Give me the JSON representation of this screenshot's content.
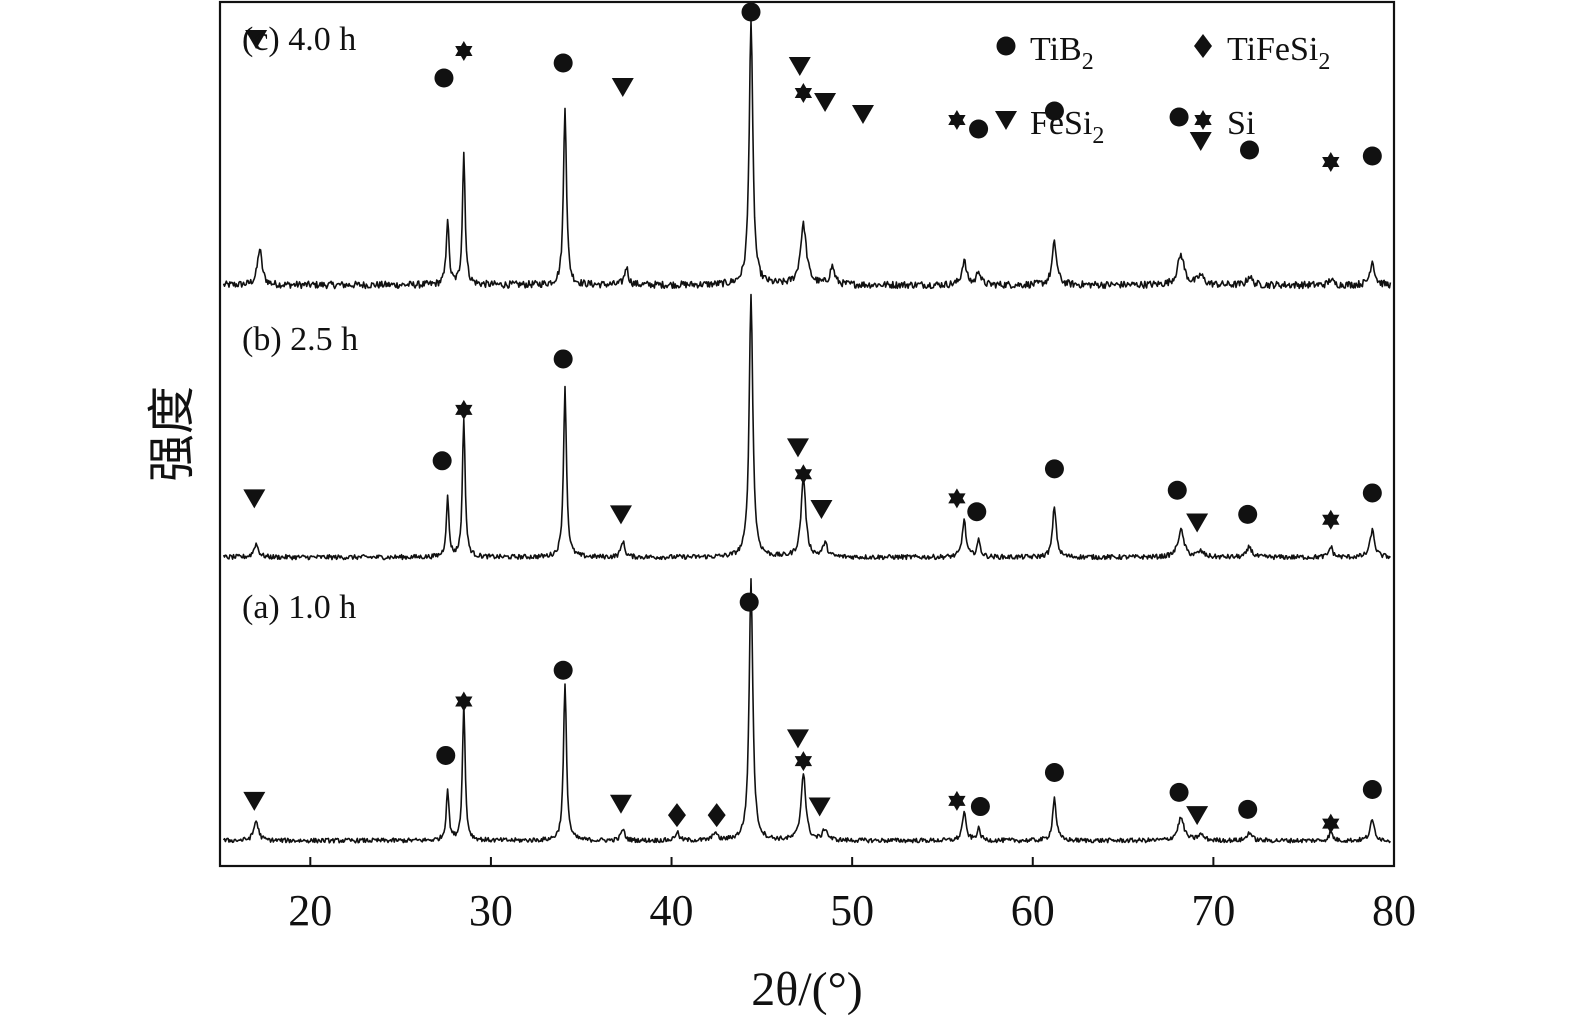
{
  "chart_data": {
    "type": "line",
    "xlabel": "2θ/(°)",
    "ylabel": "强度",
    "xlim": [
      15,
      80
    ],
    "x_ticks": [
      20,
      30,
      40,
      50,
      60,
      70,
      80
    ],
    "grid": false,
    "legend_position": "top-right",
    "legend": [
      {
        "phase": "TiB",
        "sub": "2",
        "marker": "circle"
      },
      {
        "phase": "TiFeSi",
        "sub": "2",
        "marker": "diamond"
      },
      {
        "phase": "FeSi",
        "sub": "2",
        "marker": "triangle-down"
      },
      {
        "phase": "Si",
        "sub": "",
        "marker": "star"
      }
    ],
    "series": [
      {
        "name": "(c) 4.0 h",
        "baseline": 0.05,
        "noise": 0.012,
        "peaks": [
          [
            17.2,
            0.12,
            0.15
          ],
          [
            27.6,
            0.22,
            0.09
          ],
          [
            28.5,
            0.44,
            0.09
          ],
          [
            34.1,
            0.6,
            0.1
          ],
          [
            37.5,
            0.06,
            0.12
          ],
          [
            44.4,
            0.88,
            0.12
          ],
          [
            47.3,
            0.2,
            0.2
          ],
          [
            48.9,
            0.06,
            0.15
          ],
          [
            56.2,
            0.08,
            0.15
          ],
          [
            57.0,
            0.05,
            0.12
          ],
          [
            61.2,
            0.14,
            0.15
          ],
          [
            68.2,
            0.1,
            0.22
          ],
          [
            69.3,
            0.03,
            0.2
          ],
          [
            72.0,
            0.03,
            0.15
          ],
          [
            76.5,
            0.02,
            0.12
          ],
          [
            78.8,
            0.08,
            0.15
          ]
        ],
        "markers": [
          [
            "triangle-down",
            17.0,
            0.87
          ],
          [
            "circle",
            27.4,
            0.74
          ],
          [
            "star",
            28.5,
            0.83
          ],
          [
            "circle",
            34.0,
            0.79
          ],
          [
            "triangle-down",
            37.3,
            0.71
          ],
          [
            "circle",
            44.4,
            0.96
          ],
          [
            "triangle-down",
            47.1,
            0.78
          ],
          [
            "star",
            47.3,
            0.69
          ],
          [
            "triangle-down",
            48.5,
            0.66
          ],
          [
            "triangle-down",
            50.6,
            0.62
          ],
          [
            "star",
            55.8,
            0.6
          ],
          [
            "circle",
            57.0,
            0.57
          ],
          [
            "circle",
            61.2,
            0.63
          ],
          [
            "circle",
            68.1,
            0.61
          ],
          [
            "triangle-down",
            69.3,
            0.53
          ],
          [
            "circle",
            72.0,
            0.5
          ],
          [
            "star",
            76.5,
            0.46
          ],
          [
            "circle",
            78.8,
            0.48
          ]
        ]
      },
      {
        "name": "(b) 2.5 h",
        "baseline": 0.04,
        "noise": 0.009,
        "peaks": [
          [
            17.0,
            0.05,
            0.15
          ],
          [
            27.6,
            0.22,
            0.09
          ],
          [
            28.5,
            0.52,
            0.09
          ],
          [
            34.1,
            0.63,
            0.1
          ],
          [
            37.3,
            0.06,
            0.12
          ],
          [
            44.4,
            0.98,
            0.12
          ],
          [
            47.3,
            0.3,
            0.15
          ],
          [
            48.5,
            0.05,
            0.15
          ],
          [
            56.2,
            0.14,
            0.12
          ],
          [
            57.0,
            0.06,
            0.12
          ],
          [
            61.2,
            0.19,
            0.12
          ],
          [
            68.2,
            0.1,
            0.2
          ],
          [
            69.3,
            0.02,
            0.2
          ],
          [
            72.0,
            0.04,
            0.15
          ],
          [
            76.5,
            0.04,
            0.12
          ],
          [
            78.8,
            0.1,
            0.15
          ]
        ],
        "markers": [
          [
            "triangle-down",
            16.9,
            0.26
          ],
          [
            "circle",
            27.3,
            0.4
          ],
          [
            "star",
            28.5,
            0.59
          ],
          [
            "circle",
            34.0,
            0.78
          ],
          [
            "triangle-down",
            37.2,
            0.2
          ],
          [
            "triangle-down",
            47.0,
            0.45
          ],
          [
            "star",
            47.3,
            0.35
          ],
          [
            "triangle-down",
            48.3,
            0.22
          ],
          [
            "star",
            55.8,
            0.26
          ],
          [
            "circle",
            56.9,
            0.21
          ],
          [
            "circle",
            61.2,
            0.37
          ],
          [
            "circle",
            68.0,
            0.29
          ],
          [
            "triangle-down",
            69.1,
            0.17
          ],
          [
            "circle",
            71.9,
            0.2
          ],
          [
            "star",
            76.5,
            0.18
          ],
          [
            "circle",
            78.8,
            0.28
          ]
        ]
      },
      {
        "name": "(a) 1.0 h",
        "baseline": 0.04,
        "noise": 0.008,
        "peaks": [
          [
            17.0,
            0.07,
            0.15
          ],
          [
            27.6,
            0.18,
            0.09
          ],
          [
            28.5,
            0.48,
            0.09
          ],
          [
            34.1,
            0.55,
            0.1
          ],
          [
            37.3,
            0.04,
            0.12
          ],
          [
            40.3,
            0.03,
            0.12
          ],
          [
            42.4,
            0.03,
            0.12
          ],
          [
            44.4,
            0.92,
            0.12
          ],
          [
            47.3,
            0.24,
            0.15
          ],
          [
            48.5,
            0.04,
            0.15
          ],
          [
            56.2,
            0.1,
            0.12
          ],
          [
            57.0,
            0.04,
            0.12
          ],
          [
            61.2,
            0.15,
            0.12
          ],
          [
            68.2,
            0.08,
            0.2
          ],
          [
            69.3,
            0.02,
            0.2
          ],
          [
            72.0,
            0.03,
            0.15
          ],
          [
            76.5,
            0.03,
            0.12
          ],
          [
            78.8,
            0.07,
            0.15
          ]
        ],
        "markers": [
          [
            "triangle-down",
            16.9,
            0.18
          ],
          [
            "circle",
            27.5,
            0.34
          ],
          [
            "star",
            28.5,
            0.53
          ],
          [
            "circle",
            34.0,
            0.64
          ],
          [
            "triangle-down",
            37.2,
            0.17
          ],
          [
            "diamond",
            40.3,
            0.13
          ],
          [
            "diamond",
            42.5,
            0.13
          ],
          [
            "circle",
            44.3,
            0.88
          ],
          [
            "triangle-down",
            47.0,
            0.4
          ],
          [
            "star",
            47.3,
            0.32
          ],
          [
            "triangle-down",
            48.2,
            0.16
          ],
          [
            "star",
            55.8,
            0.18
          ],
          [
            "circle",
            57.1,
            0.16
          ],
          [
            "circle",
            61.2,
            0.28
          ],
          [
            "circle",
            68.1,
            0.21
          ],
          [
            "triangle-down",
            69.1,
            0.13
          ],
          [
            "circle",
            71.9,
            0.15
          ],
          [
            "star",
            76.5,
            0.1
          ],
          [
            "circle",
            78.8,
            0.22
          ]
        ]
      }
    ]
  }
}
